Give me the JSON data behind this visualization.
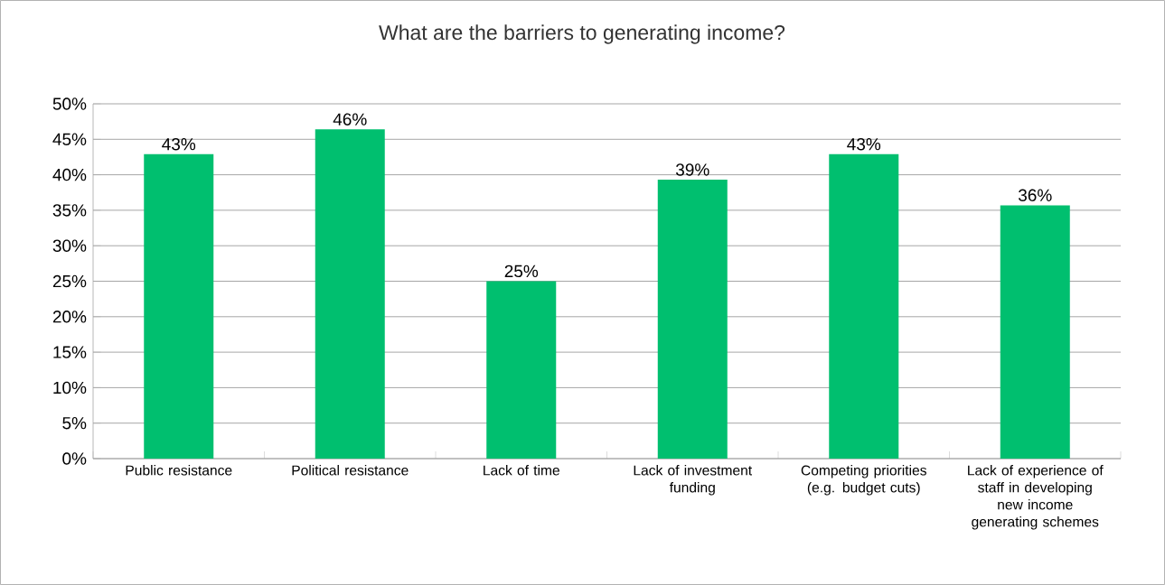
{
  "chart_data": {
    "type": "bar",
    "title": "What are the barriers to generating income?",
    "categories": [
      "Public resistance",
      "Political resistance",
      "Lack of time",
      "Lack of investment funding",
      "Competing priorities (e.g. budget cuts)",
      "Lack of experience of staff in developing new income generating schemes"
    ],
    "values": [
      42.9,
      46.4,
      25,
      39.3,
      42.9,
      35.7
    ],
    "value_labels": [
      "43%",
      "46%",
      "25%",
      "39%",
      "43%",
      "36%"
    ],
    "color": "#00bf6f",
    "ylim": [
      0,
      50
    ],
    "yticks": [
      {
        "value": 0,
        "label": "0%"
      },
      {
        "value": 5,
        "label": "5%"
      },
      {
        "value": 10,
        "label": "10%"
      },
      {
        "value": 15,
        "label": "15%"
      },
      {
        "value": 20,
        "label": "20%"
      },
      {
        "value": 25,
        "label": "25%"
      },
      {
        "value": 30,
        "label": "30%"
      },
      {
        "value": 35,
        "label": "35%"
      },
      {
        "value": 40,
        "label": "40%"
      },
      {
        "value": 45,
        "label": "45%"
      },
      {
        "value": 50,
        "label": "50%"
      }
    ],
    "grid": "y"
  }
}
